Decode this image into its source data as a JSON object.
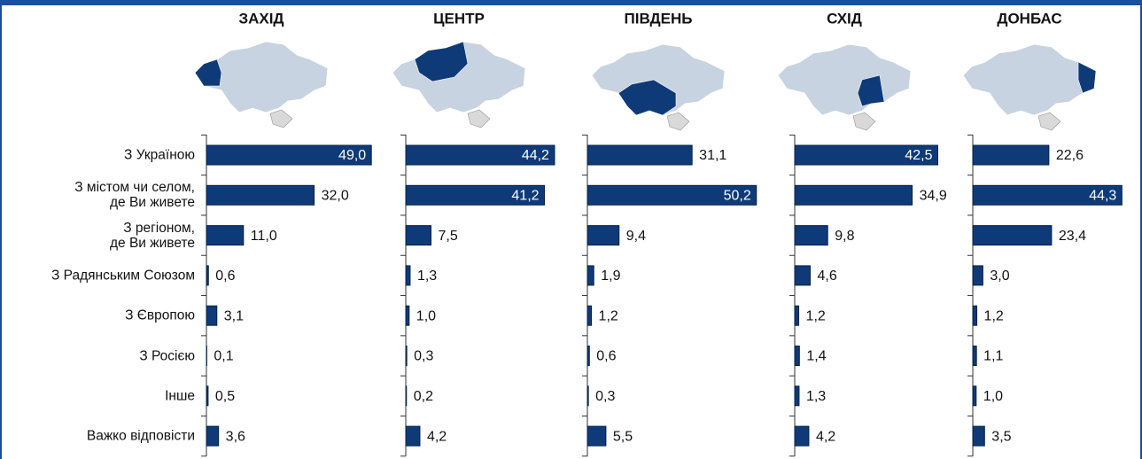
{
  "chart_data": [
    {
      "type": "bar",
      "orientation": "horizontal",
      "title": "ЗАХІД",
      "color": "#0e3a78",
      "categories": [
        "З Україною",
        "З містом чи селом,\nде Ви живете",
        "З регіоном,\nде Ви живете",
        "З Радянським Союзом",
        "З Європою",
        "З Росією",
        "Інше",
        "Важко відповісти"
      ],
      "values": [
        49.0,
        32.0,
        11.0,
        0.6,
        3.1,
        0.1,
        0.5,
        3.6
      ],
      "value_labels": [
        "49,0",
        "32,0",
        "11,0",
        "0,6",
        "3,1",
        "0,1",
        "0,5",
        "3,6"
      ]
    },
    {
      "type": "bar",
      "orientation": "horizontal",
      "title": "ЦЕНТР",
      "color": "#0e3a78",
      "values": [
        44.2,
        41.2,
        7.5,
        1.3,
        1.0,
        0.3,
        0.2,
        4.2
      ],
      "value_labels": [
        "44,2",
        "41,2",
        "7,5",
        "1,3",
        "1,0",
        "0,3",
        "0,2",
        "4,2"
      ]
    },
    {
      "type": "bar",
      "orientation": "horizontal",
      "title": "ПІВДЕНЬ",
      "color": "#0e3a78",
      "values": [
        31.1,
        50.2,
        9.4,
        1.9,
        1.2,
        0.6,
        0.3,
        5.5
      ],
      "value_labels": [
        "31,1",
        "50,2",
        "9,4",
        "1,9",
        "1,2",
        "0,6",
        "0,3",
        "5,5"
      ]
    },
    {
      "type": "bar",
      "orientation": "horizontal",
      "title": "СХІД",
      "color": "#0e3a78",
      "values": [
        42.5,
        34.9,
        9.8,
        4.6,
        1.2,
        1.4,
        1.3,
        4.2
      ],
      "value_labels": [
        "42,5",
        "34,9",
        "9,8",
        "4,6",
        "1,2",
        "1,4",
        "1,3",
        "4,2"
      ]
    },
    {
      "type": "bar",
      "orientation": "horizontal",
      "title": "ДОНБАС",
      "color": "#0e3a78",
      "values": [
        22.6,
        44.3,
        23.4,
        3.0,
        1.2,
        1.1,
        1.0,
        3.5
      ],
      "value_labels": [
        "22,6",
        "44,3",
        "23,4",
        "3,0",
        "1,2",
        "1,1",
        "1,0",
        "3,5"
      ]
    }
  ]
}
